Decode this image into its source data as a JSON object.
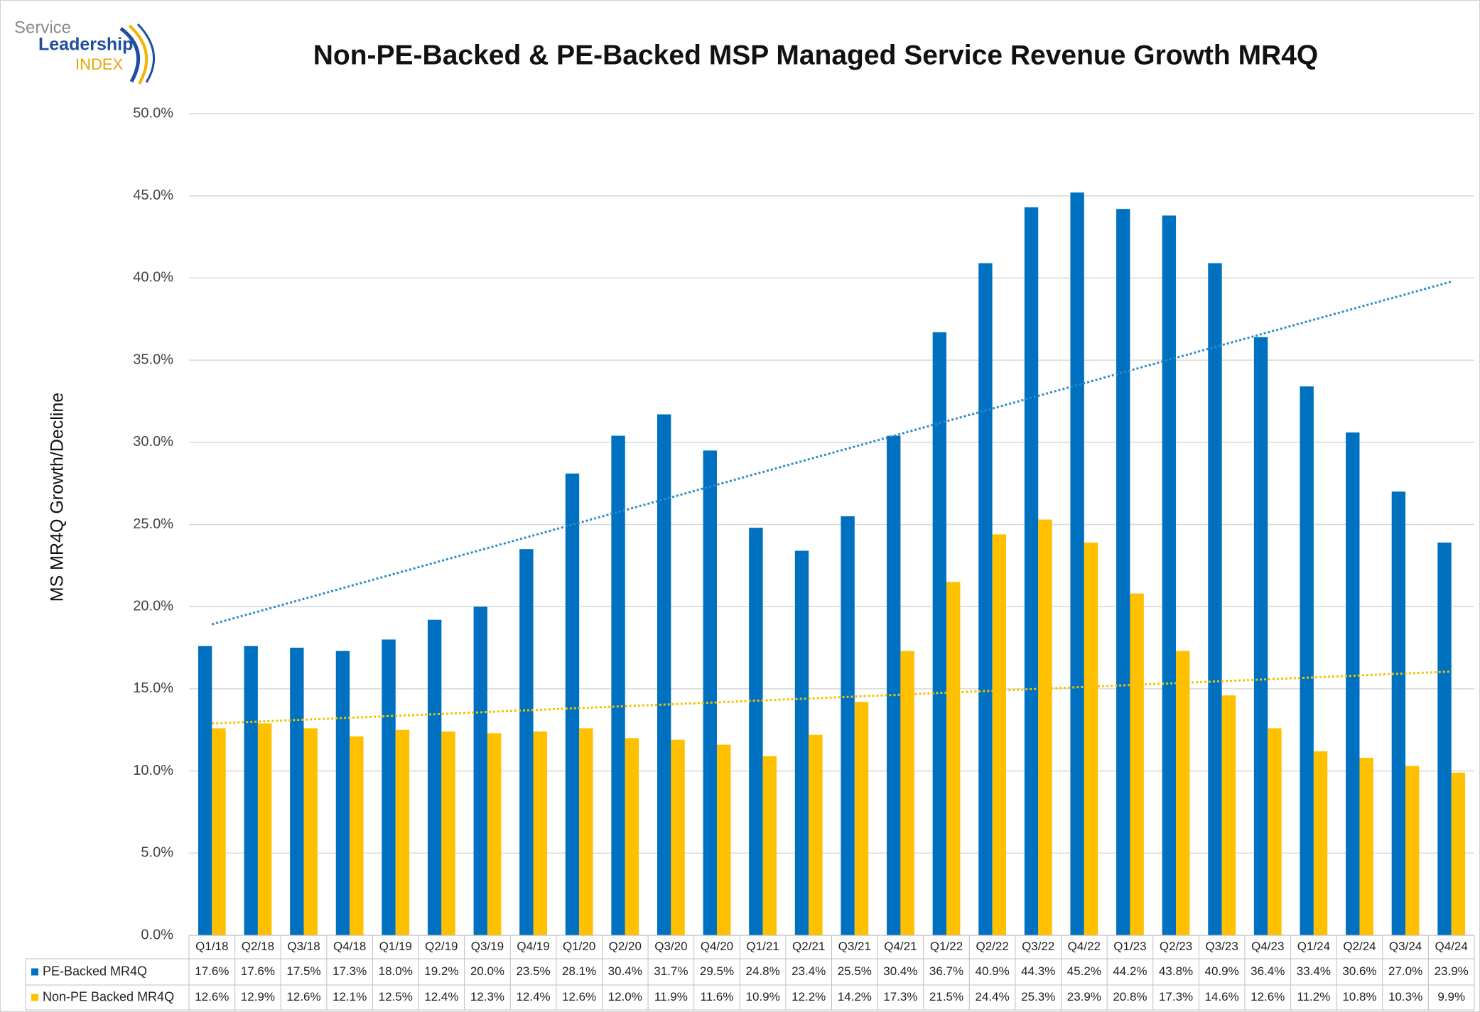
{
  "logo": {
    "line1": "Service",
    "line2": "Leadership",
    "line3": "INDEX"
  },
  "chart_data": {
    "type": "bar",
    "title": "Non-PE-Backed & PE-Backed MSP Managed Service Revenue Growth MR4Q",
    "y_label": "MS MR4Q Growth/Decline",
    "categories": [
      "Q1/18",
      "Q2/18",
      "Q3/18",
      "Q4/18",
      "Q1/19",
      "Q2/19",
      "Q3/19",
      "Q4/19",
      "Q1/20",
      "Q2/20",
      "Q3/20",
      "Q4/20",
      "Q1/21",
      "Q2/21",
      "Q3/21",
      "Q4/21",
      "Q1/22",
      "Q2/22",
      "Q3/22",
      "Q4/22",
      "Q1/23",
      "Q2/23",
      "Q3/23",
      "Q4/23",
      "Q1/24",
      "Q2/24",
      "Q3/24",
      "Q4/24"
    ],
    "series": [
      {
        "name": "PE-Backed MR4Q",
        "color": "#0070c0",
        "trendline": "linear",
        "trendline_color": "#2e8bc7",
        "values": [
          17.6,
          17.6,
          17.5,
          17.3,
          18.0,
          19.2,
          20.0,
          23.5,
          28.1,
          30.4,
          31.7,
          29.5,
          24.8,
          23.4,
          25.5,
          30.4,
          36.7,
          40.9,
          44.3,
          45.2,
          44.2,
          43.8,
          40.9,
          36.4,
          33.4,
          30.6,
          27.0,
          23.9
        ],
        "value_labels": [
          "17.6%",
          "17.6%",
          "17.5%",
          "17.3%",
          "18.0%",
          "19.2%",
          "20.0%",
          "23.5%",
          "28.1%",
          "30.4%",
          "31.7%",
          "29.5%",
          "24.8%",
          "23.4%",
          "25.5%",
          "30.4%",
          "36.7%",
          "40.9%",
          "44.3%",
          "45.2%",
          "44.2%",
          "43.8%",
          "40.9%",
          "36.4%",
          "33.4%",
          "30.6%",
          "27.0%",
          "23.9%"
        ]
      },
      {
        "name": "Non-PE Backed MR4Q",
        "color": "#ffc000",
        "trendline": "linear",
        "trendline_color": "#f2c200",
        "values": [
          12.6,
          12.9,
          12.6,
          12.1,
          12.5,
          12.4,
          12.3,
          12.4,
          12.6,
          12.0,
          11.9,
          11.6,
          10.9,
          12.2,
          14.2,
          17.3,
          21.5,
          24.4,
          25.3,
          23.9,
          20.8,
          17.3,
          14.6,
          12.6,
          11.2,
          10.8,
          10.3,
          9.9
        ],
        "value_labels": [
          "12.6%",
          "12.9%",
          "12.6%",
          "12.1%",
          "12.5%",
          "12.4%",
          "12.3%",
          "12.4%",
          "12.6%",
          "12.0%",
          "11.9%",
          "11.6%",
          "10.9%",
          "12.2%",
          "14.2%",
          "17.3%",
          "21.5%",
          "24.4%",
          "25.3%",
          "23.9%",
          "20.8%",
          "17.3%",
          "14.6%",
          "12.6%",
          "11.2%",
          "10.8%",
          "10.3%",
          "9.9%"
        ]
      }
    ],
    "ylim": [
      0,
      50
    ],
    "yticks": [
      {
        "value": 0,
        "label": "0.0%"
      },
      {
        "value": 5,
        "label": "5.0%"
      },
      {
        "value": 10,
        "label": "10.0%"
      },
      {
        "value": 15,
        "label": "15.0%"
      },
      {
        "value": 20,
        "label": "20.0%"
      },
      {
        "value": 25,
        "label": "25.0%"
      },
      {
        "value": 30,
        "label": "30.0%"
      },
      {
        "value": 35,
        "label": "35.0%"
      },
      {
        "value": 40,
        "label": "40.0%"
      },
      {
        "value": 45,
        "label": "45.0%"
      },
      {
        "value": 50,
        "label": "50.0%"
      }
    ],
    "grid": true,
    "data_table": true
  }
}
